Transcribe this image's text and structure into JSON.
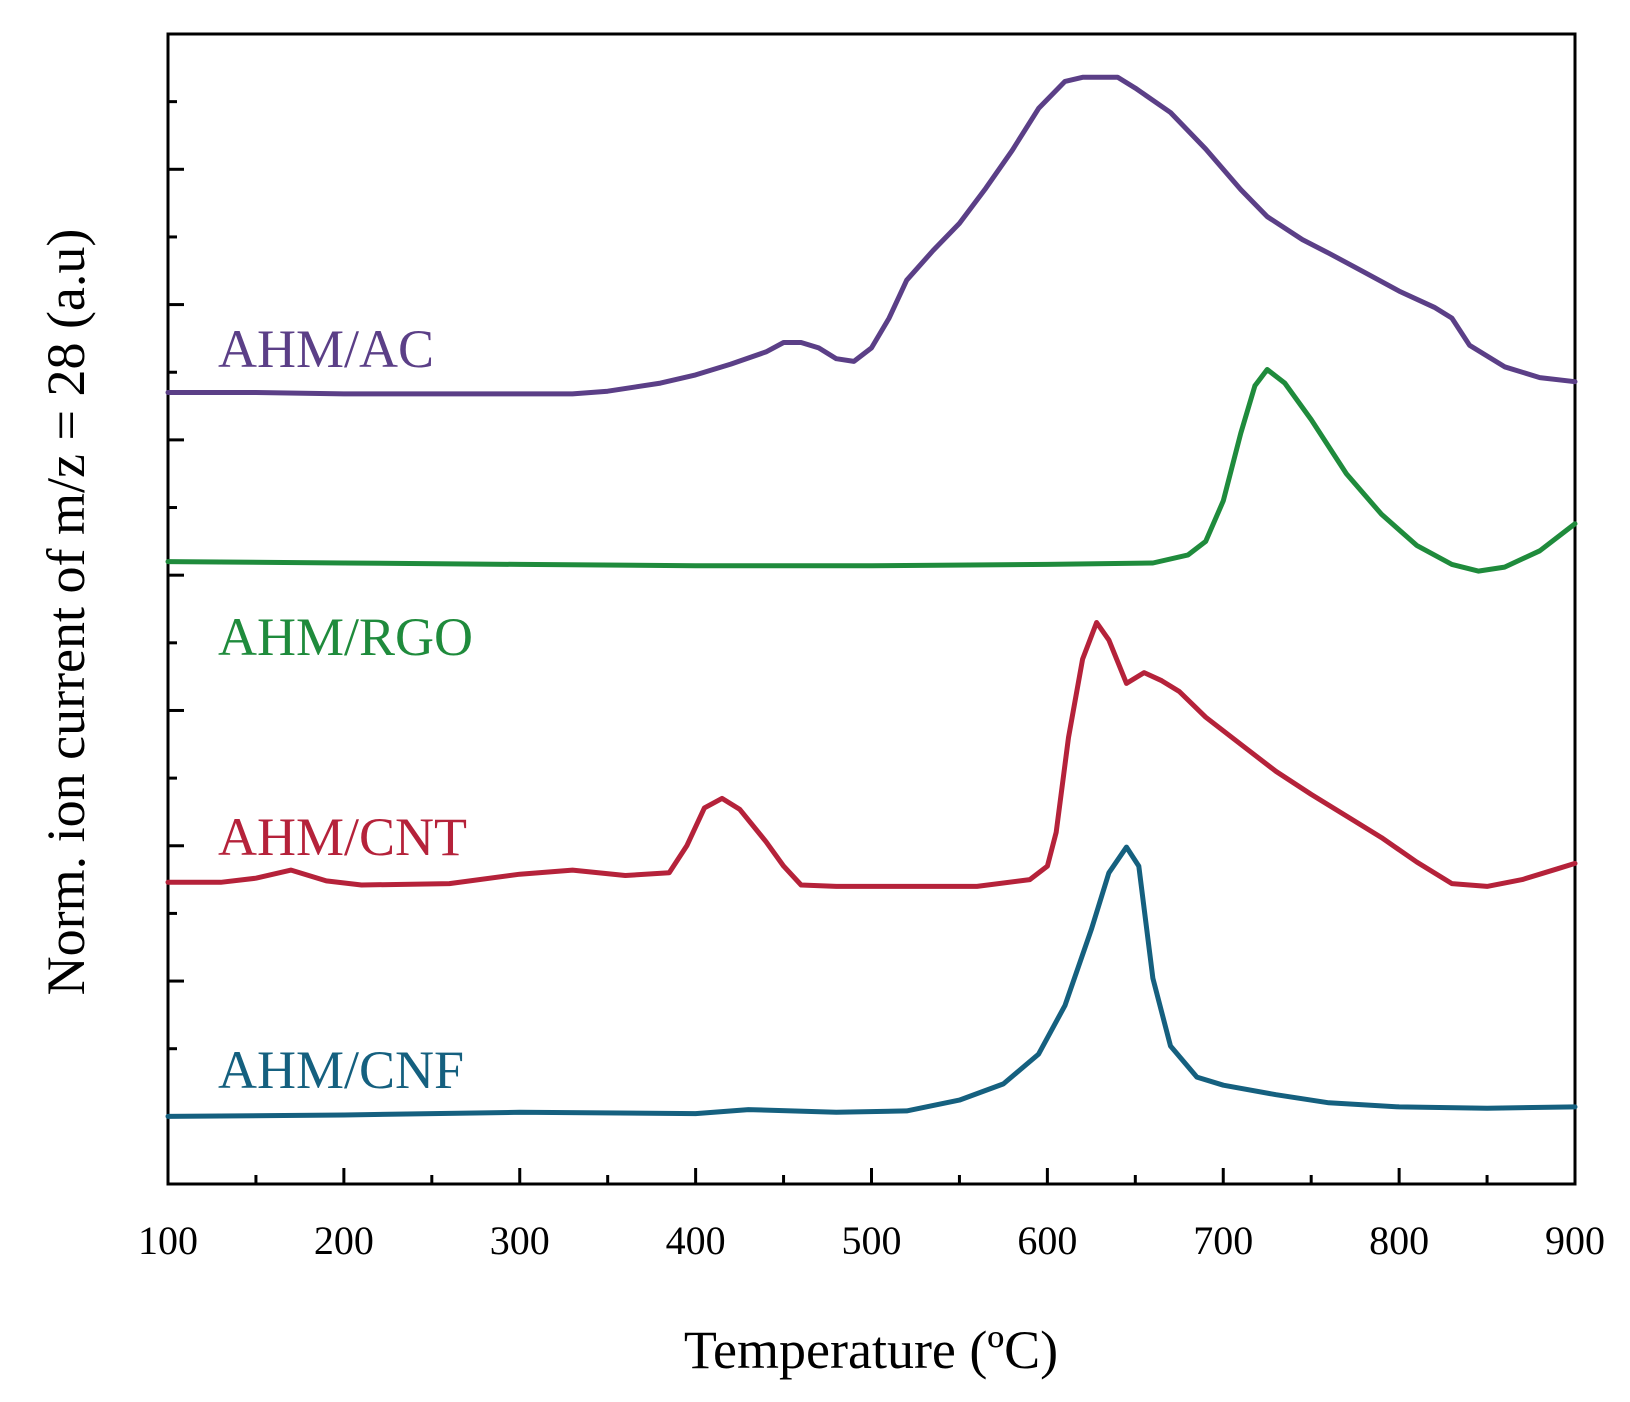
{
  "chart_data": {
    "type": "line",
    "title": "",
    "xlabel": "Temperature (ºC)",
    "ylabel": "Norm. ion current of m/z = 28 (a.u)",
    "xlim": [
      100,
      900
    ],
    "ylim": [
      -0.5,
      8.0
    ],
    "x_ticks": [
      "100",
      "200",
      "300",
      "400",
      "500",
      "600",
      "700",
      "800",
      "900"
    ],
    "y_tick_labels_shown": false,
    "grid": false,
    "legend": "inline text labels at left",
    "series": [
      {
        "name": "AHM/AC",
        "color": "#5b3f87",
        "points": [
          [
            100,
            5.35
          ],
          [
            150,
            5.35
          ],
          [
            200,
            5.34
          ],
          [
            250,
            5.34
          ],
          [
            300,
            5.34
          ],
          [
            330,
            5.34
          ],
          [
            350,
            5.36
          ],
          [
            380,
            5.42
          ],
          [
            400,
            5.48
          ],
          [
            420,
            5.56
          ],
          [
            440,
            5.65
          ],
          [
            450,
            5.72
          ],
          [
            460,
            5.72
          ],
          [
            470,
            5.68
          ],
          [
            480,
            5.6
          ],
          [
            490,
            5.58
          ],
          [
            500,
            5.68
          ],
          [
            510,
            5.9
          ],
          [
            520,
            6.18
          ],
          [
            535,
            6.4
          ],
          [
            550,
            6.6
          ],
          [
            565,
            6.86
          ],
          [
            580,
            7.14
          ],
          [
            595,
            7.45
          ],
          [
            610,
            7.65
          ],
          [
            620,
            7.68
          ],
          [
            630,
            7.68
          ],
          [
            640,
            7.68
          ],
          [
            650,
            7.6
          ],
          [
            670,
            7.42
          ],
          [
            690,
            7.15
          ],
          [
            710,
            6.85
          ],
          [
            725,
            6.65
          ],
          [
            745,
            6.48
          ],
          [
            760,
            6.38
          ],
          [
            780,
            6.24
          ],
          [
            800,
            6.1
          ],
          [
            820,
            5.98
          ],
          [
            830,
            5.9
          ],
          [
            840,
            5.7
          ],
          [
            860,
            5.54
          ],
          [
            880,
            5.46
          ],
          [
            900,
            5.43
          ]
        ]
      },
      {
        "name": "AHM/RGO",
        "color": "#1f8b3c",
        "points": [
          [
            100,
            4.1
          ],
          [
            200,
            4.09
          ],
          [
            300,
            4.08
          ],
          [
            400,
            4.07
          ],
          [
            500,
            4.07
          ],
          [
            600,
            4.08
          ],
          [
            660,
            4.09
          ],
          [
            680,
            4.15
          ],
          [
            690,
            4.25
          ],
          [
            700,
            4.55
          ],
          [
            710,
            5.05
          ],
          [
            718,
            5.4
          ],
          [
            725,
            5.52
          ],
          [
            735,
            5.42
          ],
          [
            750,
            5.15
          ],
          [
            770,
            4.75
          ],
          [
            790,
            4.45
          ],
          [
            810,
            4.22
          ],
          [
            830,
            4.08
          ],
          [
            845,
            4.03
          ],
          [
            860,
            4.06
          ],
          [
            880,
            4.18
          ],
          [
            895,
            4.33
          ],
          [
            900,
            4.38
          ]
        ]
      },
      {
        "name": "AHM/CNT",
        "color": "#b5223a",
        "points": [
          [
            100,
            1.73
          ],
          [
            130,
            1.73
          ],
          [
            150,
            1.76
          ],
          [
            170,
            1.82
          ],
          [
            190,
            1.74
          ],
          [
            210,
            1.71
          ],
          [
            260,
            1.72
          ],
          [
            300,
            1.79
          ],
          [
            330,
            1.82
          ],
          [
            360,
            1.78
          ],
          [
            385,
            1.8
          ],
          [
            395,
            2.0
          ],
          [
            405,
            2.28
          ],
          [
            415,
            2.35
          ],
          [
            425,
            2.27
          ],
          [
            440,
            2.03
          ],
          [
            450,
            1.85
          ],
          [
            460,
            1.71
          ],
          [
            480,
            1.7
          ],
          [
            560,
            1.7
          ],
          [
            590,
            1.75
          ],
          [
            600,
            1.85
          ],
          [
            605,
            2.1
          ],
          [
            612,
            2.8
          ],
          [
            620,
            3.38
          ],
          [
            628,
            3.65
          ],
          [
            635,
            3.52
          ],
          [
            645,
            3.2
          ],
          [
            655,
            3.28
          ],
          [
            665,
            3.22
          ],
          [
            675,
            3.14
          ],
          [
            690,
            2.95
          ],
          [
            710,
            2.75
          ],
          [
            730,
            2.55
          ],
          [
            750,
            2.38
          ],
          [
            770,
            2.22
          ],
          [
            790,
            2.06
          ],
          [
            810,
            1.88
          ],
          [
            830,
            1.72
          ],
          [
            850,
            1.7
          ],
          [
            870,
            1.75
          ],
          [
            890,
            1.83
          ],
          [
            900,
            1.87
          ]
        ]
      },
      {
        "name": "AHM/CNF",
        "color": "#15607f",
        "points": [
          [
            100,
            0.0
          ],
          [
            200,
            0.01
          ],
          [
            300,
            0.03
          ],
          [
            400,
            0.02
          ],
          [
            430,
            0.05
          ],
          [
            480,
            0.03
          ],
          [
            520,
            0.04
          ],
          [
            550,
            0.12
          ],
          [
            575,
            0.24
          ],
          [
            595,
            0.46
          ],
          [
            610,
            0.82
          ],
          [
            625,
            1.38
          ],
          [
            635,
            1.8
          ],
          [
            645,
            1.99
          ],
          [
            652,
            1.85
          ],
          [
            660,
            1.02
          ],
          [
            670,
            0.52
          ],
          [
            685,
            0.29
          ],
          [
            700,
            0.23
          ],
          [
            730,
            0.16
          ],
          [
            760,
            0.1
          ],
          [
            800,
            0.07
          ],
          [
            850,
            0.06
          ],
          [
            900,
            0.07
          ]
        ]
      }
    ]
  }
}
